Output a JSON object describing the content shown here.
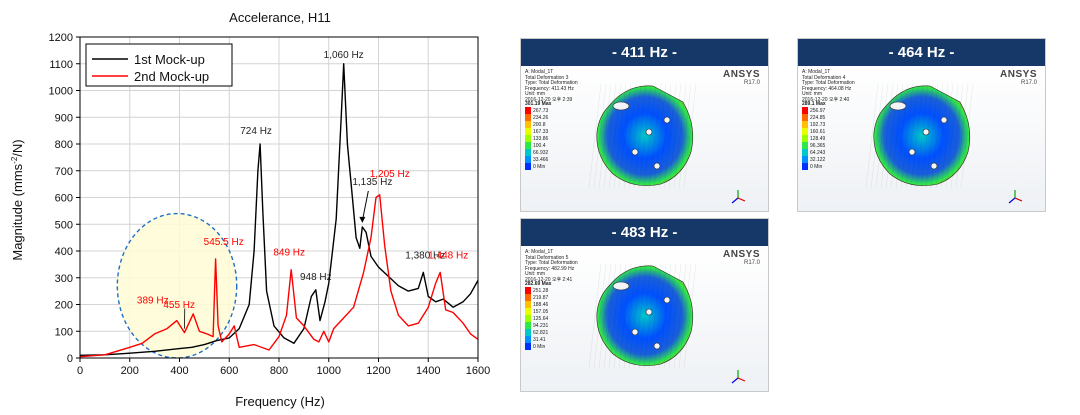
{
  "chart_data": {
    "type": "line",
    "title": "Accelerance, H11",
    "xlabel": "Frequency (Hz)",
    "ylabel": "Magnitude (mms",
    "ylabel_sup": "-2",
    "ylabel_tail": "/N)",
    "xlim": [
      0,
      1600
    ],
    "ylim": [
      0,
      1200
    ],
    "x_ticks": [
      0,
      200,
      400,
      600,
      800,
      1000,
      1200,
      1400,
      1600
    ],
    "y_ticks": [
      0,
      100,
      200,
      300,
      400,
      500,
      600,
      700,
      800,
      900,
      1000,
      1100,
      1200
    ],
    "grid": true,
    "legend_position": "top-left",
    "series": [
      {
        "name": "1st Mock-up",
        "color": "#000000",
        "points": [
          [
            0,
            10
          ],
          [
            100,
            12
          ],
          [
            200,
            18
          ],
          [
            300,
            25
          ],
          [
            400,
            35
          ],
          [
            450,
            40
          ],
          [
            500,
            50
          ],
          [
            550,
            65
          ],
          [
            600,
            75
          ],
          [
            640,
            110
          ],
          [
            680,
            200
          ],
          [
            700,
            400
          ],
          [
            715,
            700
          ],
          [
            724,
            800
          ],
          [
            735,
            550
          ],
          [
            750,
            250
          ],
          [
            780,
            120
          ],
          [
            820,
            75
          ],
          [
            860,
            55
          ],
          [
            900,
            110
          ],
          [
            930,
            230
          ],
          [
            948,
            255
          ],
          [
            965,
            140
          ],
          [
            985,
            210
          ],
          [
            1000,
            280
          ],
          [
            1030,
            520
          ],
          [
            1050,
            900
          ],
          [
            1060,
            1100
          ],
          [
            1075,
            800
          ],
          [
            1095,
            600
          ],
          [
            1110,
            450
          ],
          [
            1125,
            410
          ],
          [
            1135,
            490
          ],
          [
            1150,
            470
          ],
          [
            1170,
            380
          ],
          [
            1200,
            340
          ],
          [
            1240,
            305
          ],
          [
            1280,
            270
          ],
          [
            1320,
            250
          ],
          [
            1360,
            260
          ],
          [
            1380,
            320
          ],
          [
            1400,
            230
          ],
          [
            1430,
            210
          ],
          [
            1460,
            220
          ],
          [
            1500,
            190
          ],
          [
            1540,
            210
          ],
          [
            1570,
            240
          ],
          [
            1600,
            290
          ]
        ]
      },
      {
        "name": "2nd Mock-up",
        "color": "#ff0000",
        "points": [
          [
            0,
            5
          ],
          [
            100,
            12
          ],
          [
            200,
            40
          ],
          [
            250,
            55
          ],
          [
            300,
            90
          ],
          [
            350,
            110
          ],
          [
            389,
            140
          ],
          [
            420,
            95
          ],
          [
            455,
            165
          ],
          [
            480,
            100
          ],
          [
            510,
            90
          ],
          [
            535,
            80
          ],
          [
            545,
            370
          ],
          [
            555,
            120
          ],
          [
            570,
            60
          ],
          [
            600,
            90
          ],
          [
            620,
            120
          ],
          [
            640,
            40
          ],
          [
            700,
            50
          ],
          [
            760,
            30
          ],
          [
            800,
            80
          ],
          [
            830,
            160
          ],
          [
            849,
            330
          ],
          [
            870,
            150
          ],
          [
            900,
            120
          ],
          [
            940,
            70
          ],
          [
            960,
            60
          ],
          [
            980,
            100
          ],
          [
            1000,
            60
          ],
          [
            1020,
            110
          ],
          [
            1060,
            150
          ],
          [
            1100,
            190
          ],
          [
            1140,
            320
          ],
          [
            1170,
            450
          ],
          [
            1190,
            600
          ],
          [
            1205,
            610
          ],
          [
            1225,
            420
          ],
          [
            1250,
            250
          ],
          [
            1280,
            160
          ],
          [
            1320,
            120
          ],
          [
            1360,
            130
          ],
          [
            1400,
            190
          ],
          [
            1430,
            280
          ],
          [
            1448,
            320
          ],
          [
            1470,
            180
          ],
          [
            1500,
            170
          ],
          [
            1540,
            130
          ],
          [
            1570,
            90
          ],
          [
            1600,
            70
          ]
        ]
      }
    ],
    "annotations": [
      {
        "text": "1,060 Hz",
        "x": 1060,
        "y": 1100,
        "color": "#222222"
      },
      {
        "text": "724 Hz",
        "x": 724,
        "y": 800,
        "color": "#222222"
      },
      {
        "text": "1,135 Hz",
        "x": 1135,
        "y": 490,
        "color": "#222222"
      },
      {
        "text": "1,205 Hz",
        "x": 1205,
        "y": 610,
        "color": "#ff0000"
      },
      {
        "text": "849 Hz",
        "x": 849,
        "y": 330,
        "color": "#ff0000"
      },
      {
        "text": "948 Hz",
        "x": 948,
        "y": 255,
        "color": "#222222"
      },
      {
        "text": "545.5 Hz",
        "x": 545.5,
        "y": 370,
        "color": "#ff0000"
      },
      {
        "text": "1,380 Hz",
        "x": 1380,
        "y": 320,
        "color": "#222222"
      },
      {
        "text": "1,448 Hz",
        "x": 1448,
        "y": 320,
        "color": "#ff0000"
      },
      {
        "text": "389 Hz",
        "x": 389,
        "y": 140,
        "color": "#ff0000"
      },
      {
        "text": "455 Hz",
        "x": 455,
        "y": 165,
        "color": "#ff0000"
      }
    ],
    "highlight_region": {
      "x_range": [
        150,
        630
      ],
      "y_range": [
        0,
        540
      ],
      "fill": "#fffbd5",
      "stroke": "#1f6fc4"
    }
  },
  "mode_panels": [
    {
      "header": "- 411 Hz -",
      "info": "A: Modal_1T\nTotal Deformation 3\nType: Total Deformation\nFrequency: 411.43 Hz\nUnit: mm\n2016-12-20 오후 2:39",
      "legend_title": "301.19 Max",
      "legend_values": [
        "267.73",
        "234.26",
        "200.8",
        "167.33",
        "133.86",
        "100.4",
        "66.932",
        "33.466",
        "0 Min"
      ],
      "ansys_logo": "ANSYS",
      "ansys_version": "R17.0"
    },
    {
      "header": "- 464 Hz -",
      "info": "A: Modal_1T\nTotal Deformation 4\nType: Total Deformation\nFrequency: 464.08 Hz\nUnit: mm\n2016-12-20 오후 2:40",
      "legend_title": "289.1 Max",
      "legend_values": [
        "256.97",
        "224.85",
        "192.73",
        "160.61",
        "128.49",
        "96.365",
        "64.243",
        "32.122",
        "0 Min"
      ],
      "ansys_logo": "ANSYS",
      "ansys_version": "R17.0"
    },
    {
      "header": "- 483 Hz -",
      "info": "A: Modal_1T\nTotal Deformation 5\nType: Total Deformation\nFrequency: 482.99 Hz\nUnit: mm\n2016-12-20 오후 2:41",
      "legend_title": "282.69 Max",
      "legend_values": [
        "251.28",
        "219.87",
        "188.46",
        "157.05",
        "125.64",
        "94.231",
        "62.821",
        "31.41",
        "0 Min"
      ],
      "ansys_logo": "ANSYS",
      "ansys_version": "R17.0"
    }
  ],
  "colorbar_colors": [
    "#ff0000",
    "#ff6a00",
    "#ffc000",
    "#e8ff00",
    "#9cff00",
    "#2ee84a",
    "#00c8c8",
    "#0090ff",
    "#0030ff",
    "#0010a0"
  ]
}
